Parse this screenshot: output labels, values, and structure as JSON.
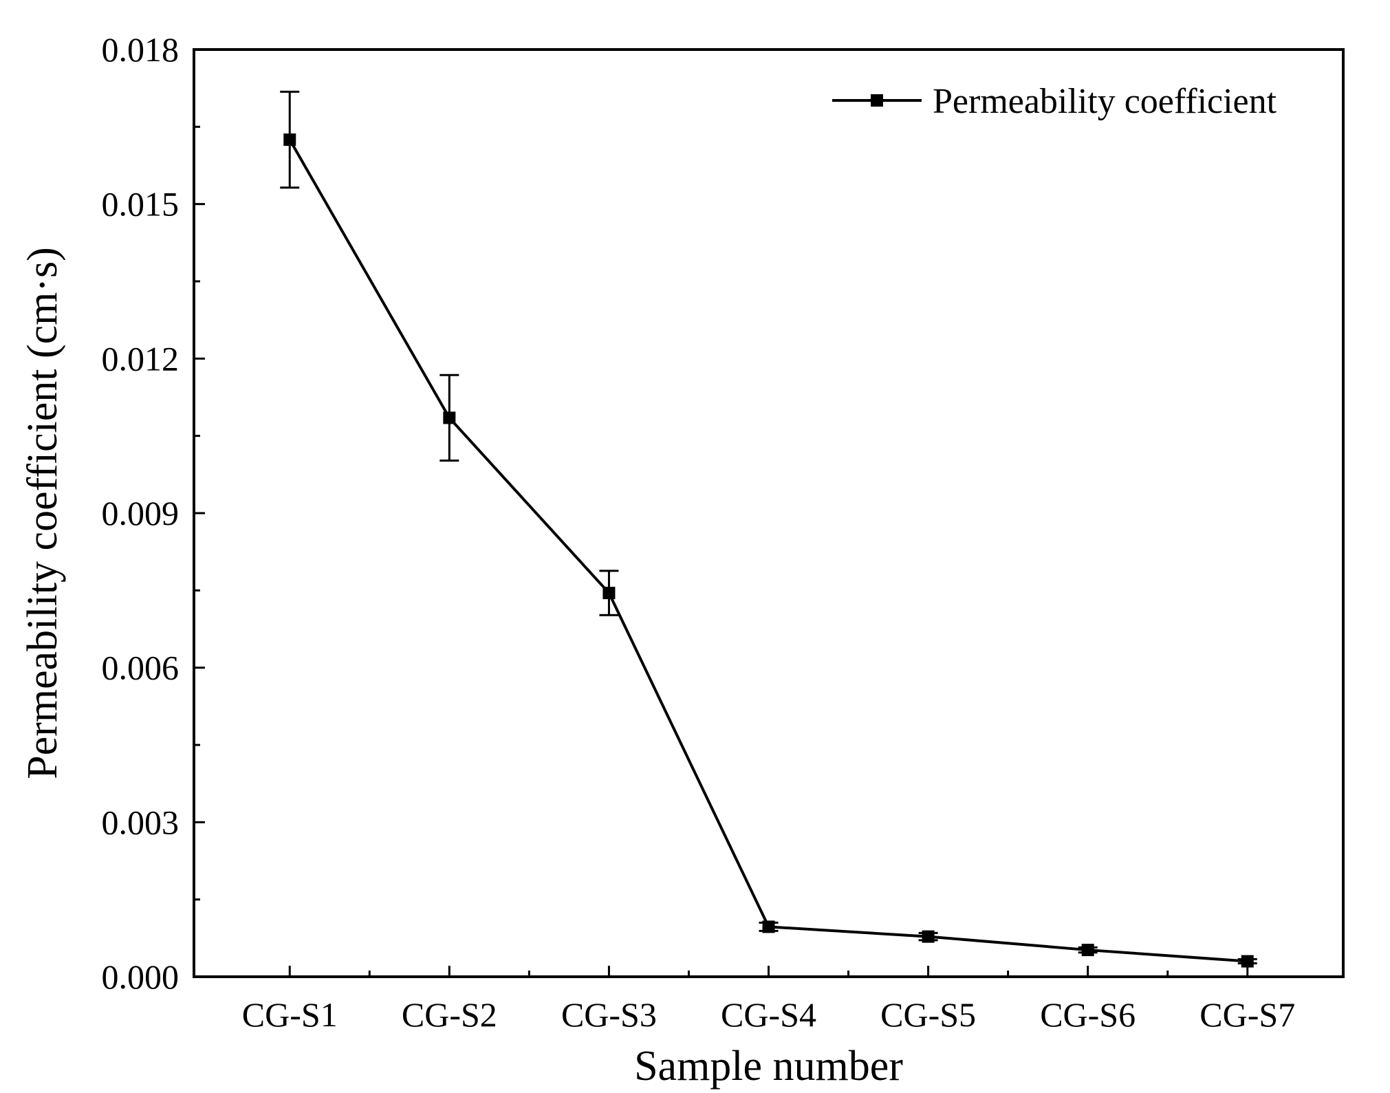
{
  "chart_data": {
    "type": "line",
    "title": "",
    "xlabel": "Sample number",
    "ylabel": "Permeability coefficient (cm·s)",
    "categories": [
      "CG-S1",
      "CG-S2",
      "CG-S3",
      "CG-S4",
      "CG-S5",
      "CG-S6",
      "CG-S7"
    ],
    "ylim": [
      0,
      0.018
    ],
    "yticks": [
      0.0,
      0.003,
      0.006,
      0.009,
      0.012,
      0.015,
      0.018
    ],
    "ytick_labels": [
      "0.000",
      "0.003",
      "0.006",
      "0.009",
      "0.012",
      "0.015",
      "0.018"
    ],
    "grid": false,
    "legend_position": "top-right",
    "series": [
      {
        "name": "Permeability coefficient",
        "color": "#000000",
        "marker": "square",
        "values": [
          0.01625,
          0.01085,
          0.00745,
          0.00097,
          0.00078,
          0.00052,
          0.0003
        ],
        "errors": [
          0.00093,
          0.00083,
          0.00043,
          8e-05,
          7e-05,
          5e-05,
          4e-05
        ]
      }
    ]
  }
}
